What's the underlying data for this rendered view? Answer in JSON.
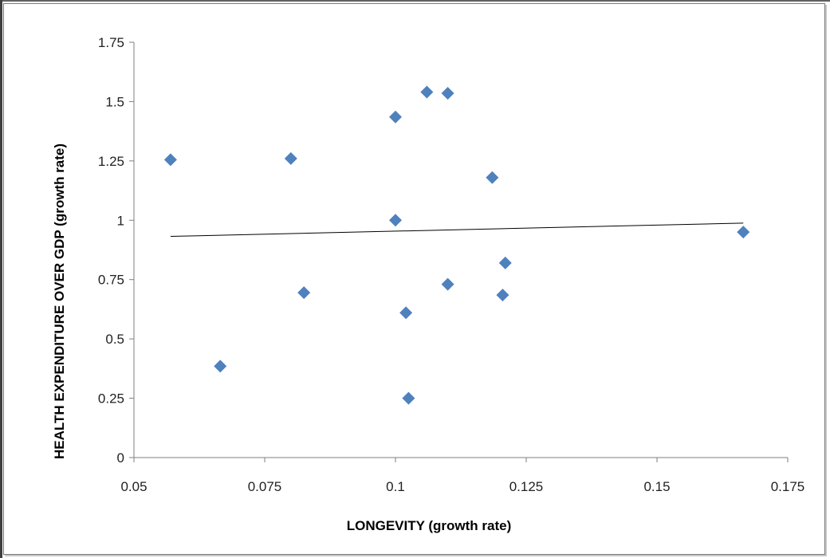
{
  "chart_data": {
    "type": "scatter",
    "title": "",
    "xlabel": "LONGEVITY  (growth rate)",
    "ylabel": "HEALTH  EXPENDITURE OVER GDP  (growth rate)",
    "xlim": [
      0.05,
      0.175
    ],
    "ylim": [
      0,
      1.75
    ],
    "xticks": [
      "0.05",
      "0.075",
      "0.1",
      "0.125",
      "0.15",
      "0.175"
    ],
    "yticks": [
      "0",
      "0.25",
      "0.5",
      "0.75",
      "1",
      "1.25",
      "1.5",
      "1.75"
    ],
    "grid": false,
    "marker_color": "#4F81BD",
    "points": [
      {
        "x": 0.057,
        "y": 1.255
      },
      {
        "x": 0.0665,
        "y": 0.385
      },
      {
        "x": 0.08,
        "y": 1.26
      },
      {
        "x": 0.0825,
        "y": 0.695
      },
      {
        "x": 0.1,
        "y": 1.435
      },
      {
        "x": 0.1,
        "y": 1.0
      },
      {
        "x": 0.102,
        "y": 0.61
      },
      {
        "x": 0.1025,
        "y": 0.25
      },
      {
        "x": 0.106,
        "y": 1.54
      },
      {
        "x": 0.11,
        "y": 1.535
      },
      {
        "x": 0.11,
        "y": 0.73
      },
      {
        "x": 0.1185,
        "y": 1.18
      },
      {
        "x": 0.1205,
        "y": 0.685
      },
      {
        "x": 0.121,
        "y": 0.82
      },
      {
        "x": 0.1665,
        "y": 0.95
      }
    ],
    "trendline": {
      "x": [
        0.057,
        0.1665
      ],
      "y": [
        0.932,
        0.988
      ],
      "color": "#000000"
    }
  }
}
